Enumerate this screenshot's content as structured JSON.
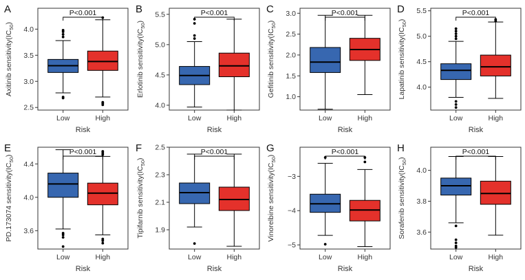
{
  "colors": {
    "low": "#3767b0",
    "high": "#e4312b",
    "frame": "#333333",
    "ink": "#000000"
  },
  "chart_data": [
    {
      "type": "box",
      "panel": "A",
      "drug": "Axitinib",
      "ylabel": "Axitinib sensitivity(IC50)",
      "ylabel_main": "Axitinib sensitivity(IC",
      "ylabel_sub": "50",
      "ylabel_tail": ")",
      "xlabel": "Risk",
      "categories": [
        "Low",
        "High"
      ],
      "ylim": [
        2.45,
        4.4
      ],
      "yticks": [
        2.5,
        3.0,
        3.5,
        4.0
      ],
      "tick_labels": [
        "2.5",
        "3.0",
        "3.5",
        "4.0"
      ],
      "pvalue": "P<0.001",
      "boxes": [
        {
          "group": "Low",
          "whisker_low": 2.78,
          "q1": 3.17,
          "median": 3.3,
          "q3": 3.42,
          "whisker_high": 3.78,
          "outliers": [
            2.68,
            2.7,
            3.85,
            3.9,
            3.95,
            3.98
          ]
        },
        {
          "group": "High",
          "whisker_low": 2.7,
          "q1": 3.21,
          "median": 3.38,
          "q3": 3.58,
          "whisker_high": 4.18,
          "outliers": [
            2.55,
            2.58,
            2.6,
            4.22
          ]
        }
      ]
    },
    {
      "type": "box",
      "panel": "B",
      "drug": "Erlotinib",
      "ylabel": "Erlotinib sensitivity(IC50)",
      "ylabel_main": "Erlotinib sensitivity(IC",
      "ylabel_sub": "50",
      "ylabel_tail": ")",
      "xlabel": "Risk",
      "categories": [
        "Low",
        "High"
      ],
      "ylim": [
        3.92,
        5.6
      ],
      "yticks": [
        4.0,
        4.5,
        5.0,
        5.5
      ],
      "tick_labels": [
        "4.0",
        "4.5",
        "5.0",
        "5.5"
      ],
      "pvalue": "P<0.001",
      "boxes": [
        {
          "group": "Low",
          "whisker_low": 3.97,
          "q1": 4.34,
          "median": 4.49,
          "q3": 4.64,
          "whisker_high": 5.05,
          "outliers": [
            5.1,
            5.15,
            5.35,
            5.42
          ]
        },
        {
          "group": "High",
          "whisker_low": 3.92,
          "q1": 4.47,
          "median": 4.65,
          "q3": 4.86,
          "whisker_high": 5.42,
          "outliers": []
        }
      ]
    },
    {
      "type": "box",
      "panel": "C",
      "drug": "Gefitinib",
      "ylabel": "Gefitinib sensitivity(IC50)",
      "ylabel_main": "Gefitinib sensitivity(IC",
      "ylabel_sub": "50",
      "ylabel_tail": ")",
      "xlabel": "Risk",
      "categories": [
        "Low",
        "High"
      ],
      "ylim": [
        0.68,
        3.12
      ],
      "yticks": [
        1.0,
        1.5,
        2.0,
        2.5,
        3.0
      ],
      "tick_labels": [
        "1.0",
        "1.5",
        "2.0",
        "2.5",
        "3.0"
      ],
      "pvalue": "P<0.001",
      "boxes": [
        {
          "group": "Low",
          "whisker_low": 0.7,
          "q1": 1.58,
          "median": 1.83,
          "q3": 2.18,
          "whisker_high": 2.95,
          "outliers": []
        },
        {
          "group": "High",
          "whisker_low": 1.05,
          "q1": 1.87,
          "median": 2.13,
          "q3": 2.4,
          "whisker_high": 2.95,
          "outliers": []
        }
      ]
    },
    {
      "type": "box",
      "panel": "D",
      "drug": "Lapatinib",
      "ylabel": "Lapatinib sensitivity(IC50)",
      "ylabel_main": "Lapatinib sensitivity(IC",
      "ylabel_sub": "50",
      "ylabel_tail": ")",
      "xlabel": "Risk",
      "categories": [
        "Low",
        "High"
      ],
      "ylim": [
        3.55,
        5.55
      ],
      "yticks": [
        4.0,
        4.5,
        5.0,
        5.5
      ],
      "tick_labels": [
        "4.0",
        "4.5",
        "5.0",
        "5.5"
      ],
      "pvalue": "P<0.001",
      "boxes": [
        {
          "group": "Low",
          "whisker_low": 3.8,
          "q1": 4.15,
          "median": 4.33,
          "q3": 4.46,
          "whisker_high": 4.9,
          "outliers": [
            3.6,
            3.66,
            3.72,
            4.95,
            5.0,
            5.05,
            5.1,
            5.15
          ]
        },
        {
          "group": "High",
          "whisker_low": 3.78,
          "q1": 4.22,
          "median": 4.4,
          "q3": 4.63,
          "whisker_high": 5.28,
          "outliers": [
            5.3,
            5.33
          ]
        }
      ]
    },
    {
      "type": "box",
      "panel": "E",
      "drug": "PD.173074",
      "ylabel": "PD.173074 sensitivity(IC50)",
      "ylabel_main": "PD.173074 sensitivity(IC",
      "ylabel_sub": "50",
      "ylabel_tail": ")",
      "xlabel": "Risk",
      "categories": [
        "Low",
        "High"
      ],
      "ylim": [
        3.38,
        4.6
      ],
      "yticks": [
        3.6,
        4.0,
        4.4
      ],
      "tick_labels": [
        "3.6",
        "4.0",
        "4.4"
      ],
      "pvalue": "P<0.001",
      "boxes": [
        {
          "group": "Low",
          "whisker_low": 3.62,
          "q1": 4.0,
          "median": 4.16,
          "q3": 4.29,
          "whisker_high": 4.57,
          "outliers": [
            3.41,
            3.52,
            3.55,
            3.57
          ]
        },
        {
          "group": "High",
          "whisker_low": 3.55,
          "q1": 3.91,
          "median": 4.05,
          "q3": 4.17,
          "whisker_high": 4.49,
          "outliers": [
            3.45,
            3.48,
            3.5,
            4.51,
            4.53,
            4.55
          ]
        }
      ]
    },
    {
      "type": "box",
      "panel": "F",
      "drug": "Tipifarnib",
      "ylabel": "Tipifarnib sensitivity(IC50)",
      "ylabel_main": "Tipifarnib sensitivity(IC",
      "ylabel_sub": "50",
      "ylabel_tail": ")",
      "xlabel": "Risk",
      "categories": [
        "Low",
        "High"
      ],
      "ylim": [
        1.76,
        2.5
      ],
      "yticks": [
        1.9,
        2.1,
        2.3,
        2.5
      ],
      "tick_labels": [
        "1.9",
        "2.1",
        "2.3",
        "2.5"
      ],
      "pvalue": "P<0.001",
      "boxes": [
        {
          "group": "Low",
          "whisker_low": 1.92,
          "q1": 2.09,
          "median": 2.17,
          "q3": 2.24,
          "whisker_high": 2.45,
          "outliers": [
            1.8
          ]
        },
        {
          "group": "High",
          "whisker_low": 1.78,
          "q1": 2.04,
          "median": 2.12,
          "q3": 2.21,
          "whisker_high": 2.45,
          "outliers": []
        }
      ]
    },
    {
      "type": "box",
      "panel": "G",
      "drug": "Vinorelbine",
      "ylabel": "Vinorelbine sensitivity(IC50)",
      "ylabel_main": "Vinorelbine sensitivity(IC",
      "ylabel_sub": "50",
      "ylabel_tail": ")",
      "xlabel": "Risk",
      "categories": [
        "Low",
        "High"
      ],
      "ylim": [
        -5.12,
        -2.15
      ],
      "yticks": [
        -5,
        -4,
        -3
      ],
      "tick_labels": [
        "−5",
        "−4",
        "−3"
      ],
      "pvalue": "P<0.001",
      "boxes": [
        {
          "group": "Low",
          "whisker_low": -4.72,
          "q1": -4.05,
          "median": -3.8,
          "q3": -3.52,
          "whisker_high": -2.62,
          "outliers": [
            -4.98,
            -2.45
          ]
        },
        {
          "group": "High",
          "whisker_low": -5.05,
          "q1": -4.3,
          "median": -3.98,
          "q3": -3.7,
          "whisker_high": -2.8,
          "outliers": [
            -2.58,
            -2.45
          ]
        }
      ]
    },
    {
      "type": "box",
      "panel": "H",
      "drug": "Sorafenib",
      "ylabel": "Sorafenib sensitivity(IC50)",
      "ylabel_main": "Sorafenib sensitivity(IC",
      "ylabel_sub": "50",
      "ylabel_tail": ")",
      "xlabel": "Risk",
      "categories": [
        "Low",
        "High"
      ],
      "ylim": [
        3.49,
        4.15
      ],
      "yticks": [
        3.6,
        3.8,
        4.0
      ],
      "tick_labels": [
        "3.6",
        "3.8",
        "4.0"
      ],
      "pvalue": "P<0.001",
      "boxes": [
        {
          "group": "Low",
          "whisker_low": 3.66,
          "q1": 3.84,
          "median": 3.9,
          "q3": 3.95,
          "whisker_high": 4.09,
          "outliers": [
            3.5,
            3.51,
            3.53,
            3.55,
            3.64
          ]
        },
        {
          "group": "High",
          "whisker_low": 3.58,
          "q1": 3.78,
          "median": 3.85,
          "q3": 3.93,
          "whisker_high": 4.09,
          "outliers": []
        }
      ]
    }
  ]
}
